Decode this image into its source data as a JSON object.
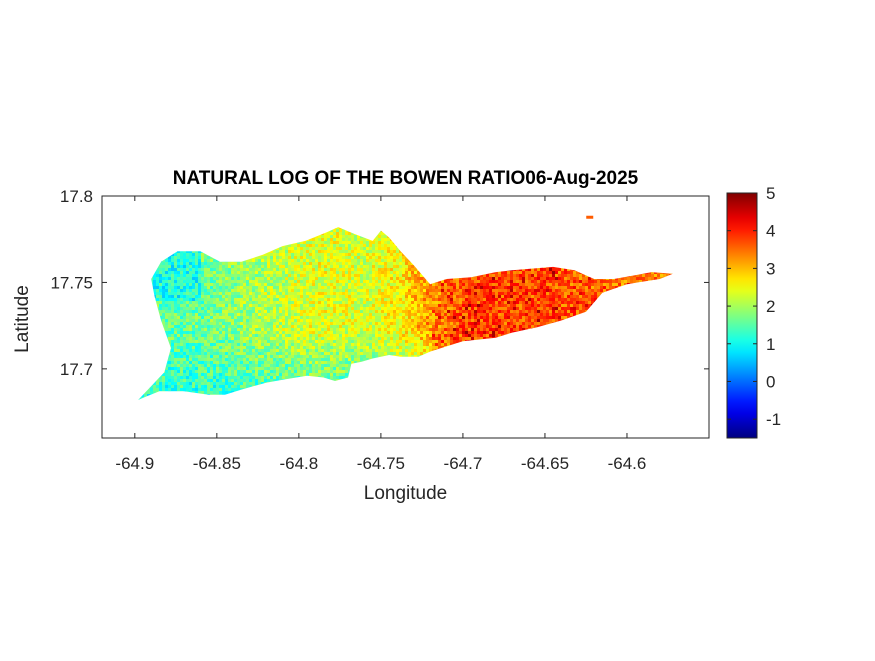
{
  "chart_data": {
    "type": "heatmap",
    "title": "NATURAL LOG OF THE BOWEN RATIO06-Aug-2025",
    "xlabel": "Longitude",
    "ylabel": "Latitude",
    "xlim": [
      -64.92,
      -64.55
    ],
    "ylim": [
      17.66,
      17.8
    ],
    "xticks": [
      -64.9,
      -64.85,
      -64.8,
      -64.75,
      -64.7,
      -64.65,
      -64.6
    ],
    "xtick_labels": [
      "-64.9",
      "-64.85",
      "-64.8",
      "-64.75",
      "-64.7",
      "-64.65",
      "-64.6"
    ],
    "yticks": [
      17.7,
      17.75,
      17.8
    ],
    "ytick_labels": [
      "17.7",
      "17.75",
      "17.8"
    ],
    "grid": false,
    "colormap": "jet",
    "colorbar": {
      "clim": [
        -1.5,
        5
      ],
      "ticks": [
        -1,
        0,
        1,
        2,
        3,
        4,
        5
      ],
      "tick_labels": [
        "-1",
        "0",
        "1",
        "2",
        "3",
        "4",
        "5"
      ],
      "location": "right"
    },
    "island_outline": [
      [
        -64.898,
        17.682
      ],
      [
        -64.89,
        17.69
      ],
      [
        -64.882,
        17.698
      ],
      [
        -64.878,
        17.712
      ],
      [
        -64.884,
        17.728
      ],
      [
        -64.888,
        17.742
      ],
      [
        -64.89,
        17.752
      ],
      [
        -64.884,
        17.762
      ],
      [
        -64.874,
        17.768
      ],
      [
        -64.86,
        17.768
      ],
      [
        -64.848,
        17.762
      ],
      [
        -64.835,
        17.762
      ],
      [
        -64.822,
        17.766
      ],
      [
        -64.81,
        17.771
      ],
      [
        -64.796,
        17.774
      ],
      [
        -64.783,
        17.779
      ],
      [
        -64.776,
        17.782
      ],
      [
        -64.766,
        17.778
      ],
      [
        -64.755,
        17.774
      ],
      [
        -64.75,
        17.78
      ],
      [
        -64.745,
        17.776
      ],
      [
        -64.738,
        17.768
      ],
      [
        -64.73,
        17.76
      ],
      [
        -64.72,
        17.749
      ],
      [
        -64.71,
        17.752
      ],
      [
        -64.695,
        17.753
      ],
      [
        -64.68,
        17.756
      ],
      [
        -64.67,
        17.757
      ],
      [
        -64.658,
        17.758
      ],
      [
        -64.645,
        17.759
      ],
      [
        -64.632,
        17.757
      ],
      [
        -64.62,
        17.752
      ],
      [
        -64.608,
        17.752
      ],
      [
        -64.596,
        17.754
      ],
      [
        -64.585,
        17.756
      ],
      [
        -64.572,
        17.755
      ],
      [
        -64.58,
        17.752
      ],
      [
        -64.6,
        17.749
      ],
      [
        -64.615,
        17.744
      ],
      [
        -64.625,
        17.733
      ],
      [
        -64.64,
        17.728
      ],
      [
        -64.655,
        17.724
      ],
      [
        -64.67,
        17.721
      ],
      [
        -64.68,
        17.718
      ],
      [
        -64.69,
        17.717
      ],
      [
        -64.7,
        17.716
      ],
      [
        -64.71,
        17.713
      ],
      [
        -64.72,
        17.71
      ],
      [
        -64.727,
        17.707
      ],
      [
        -64.738,
        17.707
      ],
      [
        -64.745,
        17.708
      ],
      [
        -64.755,
        17.706
      ],
      [
        -64.762,
        17.704
      ],
      [
        -64.768,
        17.703
      ],
      [
        -64.77,
        17.695
      ],
      [
        -64.778,
        17.693
      ],
      [
        -64.785,
        17.695
      ],
      [
        -64.795,
        17.696
      ],
      [
        -64.808,
        17.694
      ],
      [
        -64.82,
        17.692
      ],
      [
        -64.835,
        17.688
      ],
      [
        -64.845,
        17.685
      ],
      [
        -64.855,
        17.685
      ],
      [
        -64.87,
        17.687
      ],
      [
        -64.885,
        17.687
      ],
      [
        -64.893,
        17.684
      ]
    ],
    "small_islets": [
      {
        "lon": -64.623,
        "lat": 17.788,
        "value": 3.6
      }
    ],
    "value_trend": {
      "description_note": "",
      "anchors_lon": [
        -64.9,
        -64.86,
        -64.82,
        -64.79,
        -64.76,
        -64.74,
        -64.72,
        -64.7,
        -64.65,
        -64.6
      ],
      "anchors_value": [
        1.6,
        1.6,
        2.1,
        2.4,
        2.3,
        2.6,
        3.3,
        3.7,
        3.7,
        3.4
      ],
      "south_west_cool": 1.1
    }
  }
}
